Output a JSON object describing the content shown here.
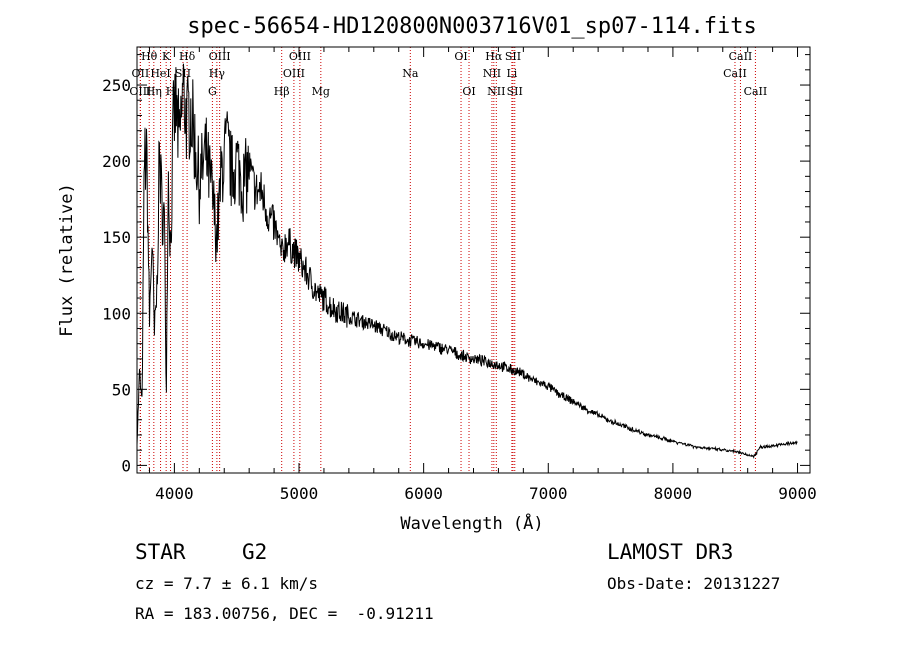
{
  "chart_data": {
    "type": "line",
    "title": "spec-56654-HD120800N003716V01_sp07-114.fits",
    "xlabel": "Wavelength (Å)",
    "ylabel": "Flux (relative)",
    "xlim": [
      3700,
      9100
    ],
    "ylim": [
      -5,
      275
    ],
    "xticks": [
      4000,
      5000,
      6000,
      7000,
      8000,
      9000
    ],
    "yticks": [
      0,
      50,
      100,
      150,
      200,
      250
    ],
    "grid": false,
    "series": [
      {
        "x": [
          3700,
          3720,
          3740,
          3760,
          3780,
          3800,
          3820,
          3840,
          3860,
          3880,
          3900,
          3920,
          3935,
          3950,
          3970,
          3990,
          4010,
          4040,
          4070,
          4100,
          4130,
          4160,
          4200,
          4250,
          4300,
          4340,
          4380,
          4420,
          4460,
          4500,
          4550,
          4600,
          4650,
          4700,
          4750,
          4800,
          4861,
          4900,
          4950,
          5000,
          5050,
          5100,
          5150,
          5200,
          5250,
          5300,
          5400,
          5500,
          5600,
          5700,
          5800,
          5890,
          6000,
          6100,
          6200,
          6300,
          6400,
          6500,
          6563,
          6600,
          6700,
          6800,
          6900,
          7000,
          7100,
          7200,
          7300,
          7400,
          7500,
          7600,
          7700,
          7800,
          7900,
          8000,
          8100,
          8200,
          8300,
          8400,
          8500,
          8550,
          8600,
          8650,
          8700,
          8800,
          8900,
          9000
        ],
        "values": [
          15,
          60,
          40,
          205,
          195,
          95,
          150,
          85,
          115,
          205,
          170,
          160,
          45,
          195,
          140,
          220,
          238,
          210,
          248,
          225,
          235,
          215,
          185,
          205,
          180,
          150,
          195,
          210,
          192,
          200,
          185,
          195,
          180,
          180,
          165,
          158,
          138,
          148,
          142,
          135,
          128,
          120,
          112,
          110,
          105,
          102,
          98,
          95,
          92,
          88,
          84,
          82,
          80,
          78,
          76,
          72,
          70,
          68,
          67,
          66,
          63,
          60,
          55,
          52,
          46,
          42,
          37,
          33,
          29,
          26,
          23,
          20,
          18,
          16,
          14,
          12,
          11,
          10,
          9,
          8,
          7,
          6,
          12,
          13,
          14,
          15
        ]
      }
    ],
    "spectral_lines": [
      {
        "label": "Hθ",
        "x": 3798,
        "row": 1
      },
      {
        "label": "OII",
        "x": 3727,
        "row": 2
      },
      {
        "label": "OIII",
        "x": 3727,
        "row": 3
      },
      {
        "label": "K",
        "x": 3934,
        "row": 1
      },
      {
        "label": "HeI",
        "x": 3889,
        "row": 2
      },
      {
        "label": "Hη",
        "x": 3835,
        "row": 3
      },
      {
        "label": "Hδ",
        "x": 4102,
        "row": 1
      },
      {
        "label": "SII",
        "x": 4069,
        "row": 2
      },
      {
        "label": "H",
        "x": 3969,
        "row": 3
      },
      {
        "label": "OIII",
        "x": 4363,
        "row": 1
      },
      {
        "label": "Hγ",
        "x": 4341,
        "row": 2
      },
      {
        "label": "G",
        "x": 4305,
        "row": 3
      },
      {
        "label": "OIII",
        "x": 5007,
        "row": 1
      },
      {
        "label": "OIII",
        "x": 4959,
        "row": 2
      },
      {
        "label": "Hβ",
        "x": 4861,
        "row": 3
      },
      {
        "label": "Mg",
        "x": 5175,
        "row": 3
      },
      {
        "label": "Na",
        "x": 5893,
        "row": 2
      },
      {
        "label": "OI",
        "x": 6300,
        "row": 1
      },
      {
        "label": "OI",
        "x": 6364,
        "row": 3
      },
      {
        "label": "Hα",
        "x": 6563,
        "row": 1
      },
      {
        "label": "SII",
        "x": 6717,
        "row": 1
      },
      {
        "label": "NII",
        "x": 6548,
        "row": 2
      },
      {
        "label": "Li",
        "x": 6708,
        "row": 2
      },
      {
        "label": "NII",
        "x": 6583,
        "row": 3
      },
      {
        "label": "SII",
        "x": 6731,
        "row": 3
      },
      {
        "label": "CaII",
        "x": 8542,
        "row": 1
      },
      {
        "label": "CaII",
        "x": 8498,
        "row": 2
      },
      {
        "label": "CaII",
        "x": 8662,
        "row": 3
      }
    ]
  },
  "info": {
    "class": "STAR",
    "subclass": "G2",
    "survey": "LAMOST DR3",
    "cz": "cz = 7.7 ± 6.1 km/s",
    "obs_date": "Obs-Date: 20131227",
    "coords": "RA = 183.00756, DEC =  -0.91211"
  },
  "colors": {
    "spectrum": "#000000",
    "line_markers": "#cc0000",
    "frame": "#000000"
  }
}
